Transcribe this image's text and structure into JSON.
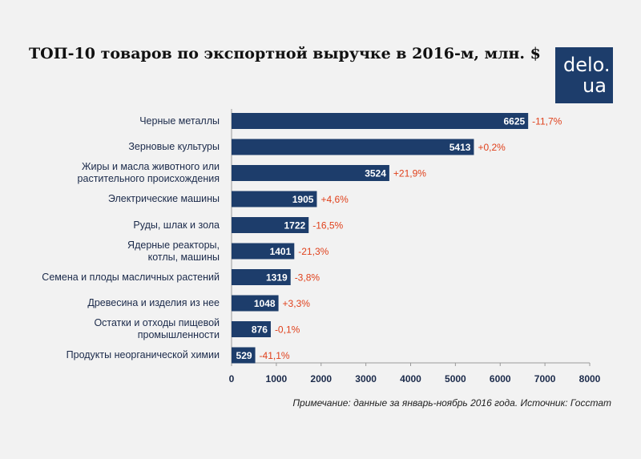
{
  "title": "ТОП-10 товаров по экспортной выручке в 2016-м, млн. $",
  "logo": {
    "line1": "delo.",
    "line2": "ua"
  },
  "note": "Примечание: данные за январь-ноябрь 2016 года. Источник: Госстат",
  "colors": {
    "bar": "#1d3d6b",
    "change": "#e0411c",
    "axis": "#999999"
  },
  "chart_data": {
    "type": "bar",
    "orientation": "horizontal",
    "categories": [
      "Черные металлы",
      "Зерновые культуры",
      "Жиры и масла животного или\nрастительного происхождения",
      "Электрические машины",
      "Руды, шлак и зола",
      "Ядерные реакторы,\nкотлы, машины",
      "Семена и плоды масличных растений",
      "Древесина и изделия из нее",
      "Остатки и отходы пищевой\nпромышленности",
      "Продукты неорганической химии"
    ],
    "values": [
      6625,
      5413,
      3524,
      1905,
      1722,
      1401,
      1319,
      1048,
      876,
      529
    ],
    "changes": [
      "-11,7%",
      "+0,2%",
      "+21,9%",
      "+4,6%",
      "-16,5%",
      "-21,3%",
      "-3,8%",
      "+3,3%",
      "-0,1%",
      "-41,1%"
    ],
    "xlim": [
      0,
      8000
    ],
    "xticks": [
      0,
      1000,
      2000,
      3000,
      4000,
      5000,
      6000,
      7000,
      8000
    ],
    "grid": false,
    "legend": "none"
  }
}
